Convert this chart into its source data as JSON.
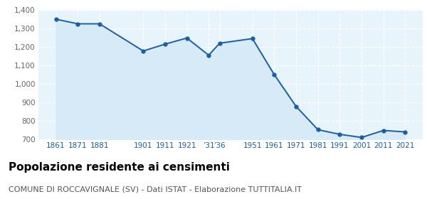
{
  "years": [
    1861,
    1871,
    1881,
    1901,
    1911,
    1921,
    1931,
    1936,
    1951,
    1961,
    1971,
    1981,
    1991,
    2001,
    2011,
    2021
  ],
  "x_labels": [
    "1861",
    "1871",
    "1881",
    "1901",
    "1911",
    "1921",
    "’31",
    "’36",
    "1951",
    "1961",
    "1971",
    "1981",
    "1991",
    "2001",
    "2011",
    "2021"
  ],
  "population": [
    1350,
    1325,
    1325,
    1178,
    1215,
    1248,
    1155,
    1220,
    1245,
    1050,
    878,
    752,
    727,
    710,
    748,
    740
  ],
  "line_color": "#1a5ea8",
  "fill_color": "#d6eaf8",
  "marker_color": "#1a5ea8",
  "background_color": "#e8f4fb",
  "grid_color": "#ffffff",
  "tick_color": "#1a5ea8",
  "ylim": [
    700,
    1400
  ],
  "yticks": [
    700,
    800,
    900,
    1000,
    1100,
    1200,
    1300,
    1400
  ],
  "ytick_labels": [
    "700",
    "800",
    "900",
    "1,000",
    "1,100",
    "1,200",
    "1,300",
    "1,400"
  ],
  "title": "Popolazione residente ai censimenti",
  "subtitle": "COMUNE DI ROCCAVIGNALE (SV) - Dati ISTAT - Elaborazione TUTTITALIA.IT",
  "title_fontsize": 11,
  "subtitle_fontsize": 8,
  "xlim_left": 1853,
  "xlim_right": 2029
}
